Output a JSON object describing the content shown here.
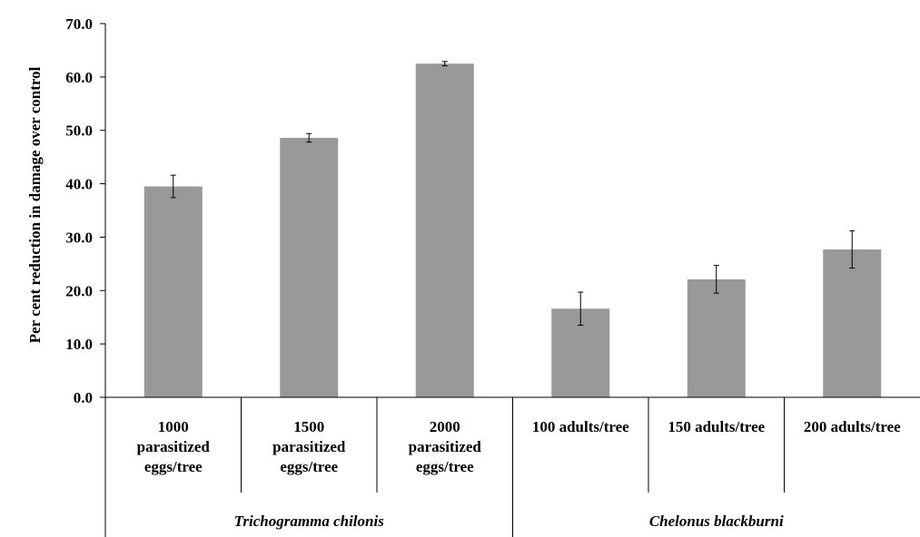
{
  "chart_data": {
    "type": "bar",
    "ylabel": "Per cent reduction in damage over control",
    "ylim": [
      0,
      70
    ],
    "ytick_step": 10,
    "ytick_labels": [
      "0.0",
      "10.0",
      "20.0",
      "30.0",
      "40.0",
      "50.0",
      "60.0",
      "70.0"
    ],
    "grid": false,
    "bar_color": "#999999",
    "categories": [
      [
        "1000",
        "parasitized",
        "eggs/tree"
      ],
      [
        "1500",
        "parasitized",
        "eggs/tree"
      ],
      [
        "2000",
        "parasitized",
        "eggs/tree"
      ],
      [
        "100 adults/tree"
      ],
      [
        "150 adults/tree"
      ],
      [
        "200 adults/tree"
      ]
    ],
    "groups": [
      {
        "label": "Trichogramma chilonis",
        "count": 3
      },
      {
        "label": "Chelonus blackburni",
        "count": 3
      }
    ],
    "values": [
      39.5,
      48.6,
      62.5,
      16.6,
      22.1,
      27.7
    ],
    "errors": [
      2.1,
      0.8,
      0.4,
      3.1,
      2.6,
      3.5
    ]
  }
}
